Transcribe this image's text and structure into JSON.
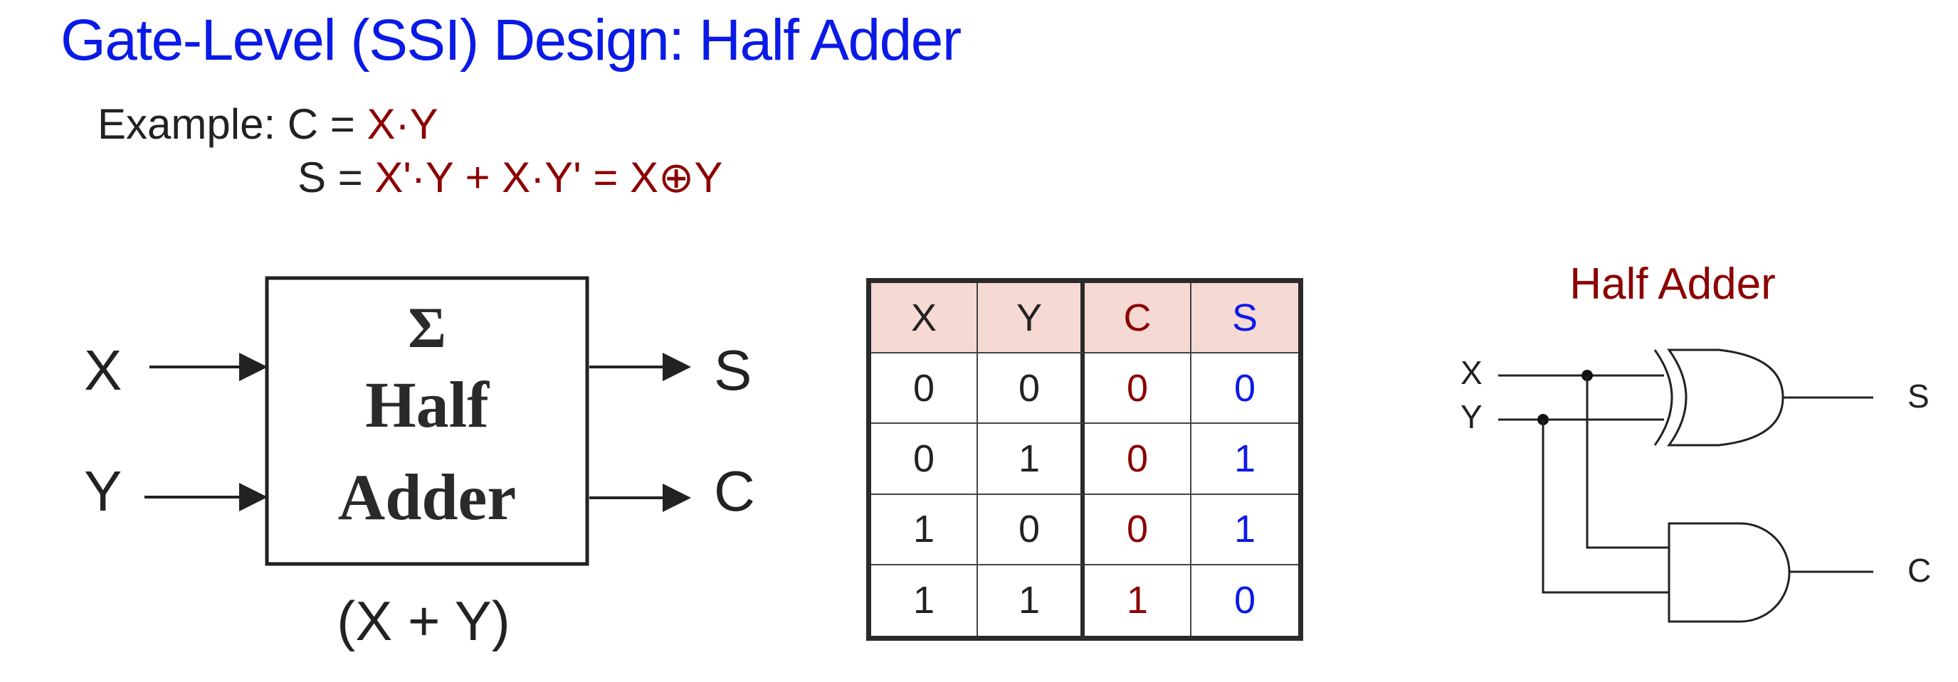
{
  "title": "Gate-Level (SSI) Design: Half Adder",
  "equations": {
    "line1_prefix": "Example: C = ",
    "line1_expr": "X·Y",
    "line2_prefix": "S = ",
    "line2_expr": "X'·Y + X·Y' = X⊕Y"
  },
  "block": {
    "sigma": "Σ",
    "line1": "Half",
    "line2": "Adder",
    "input_x": "X",
    "input_y": "Y",
    "output_s": "S",
    "output_c": "C",
    "caption": "(X + Y)"
  },
  "truth_table": {
    "headers": [
      "X",
      "Y",
      "C",
      "S"
    ],
    "rows": [
      [
        "0",
        "0",
        "0",
        "0"
      ],
      [
        "0",
        "1",
        "0",
        "1"
      ],
      [
        "1",
        "0",
        "0",
        "1"
      ],
      [
        "1",
        "1",
        "1",
        "0"
      ]
    ]
  },
  "circuit": {
    "title": "Half Adder",
    "input_x": "X",
    "input_y": "Y",
    "output_s": "S",
    "output_c": "C"
  },
  "colors": {
    "title_blue": "#0a1ae6",
    "expr_red": "#8b0000",
    "header_fill": "#f5d9d2"
  }
}
